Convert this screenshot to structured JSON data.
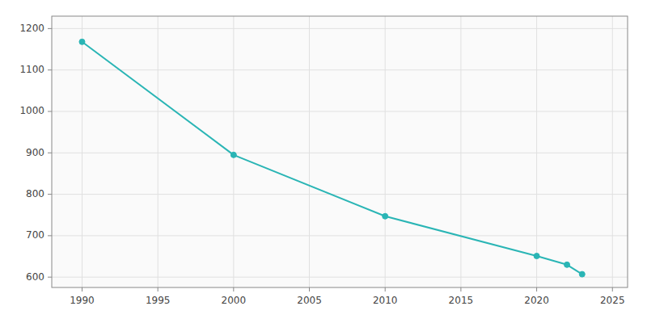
{
  "chart_data": {
    "type": "line",
    "x": [
      1990,
      2000,
      2010,
      2020,
      2022,
      2023
    ],
    "values": [
      1168,
      895,
      747,
      651,
      630,
      607
    ],
    "color": "#2ab5b5",
    "marker": "circle",
    "xlim": [
      1988,
      2026
    ],
    "ylim": [
      575,
      1230
    ],
    "xticks": [
      1990,
      1995,
      2000,
      2005,
      2010,
      2015,
      2020,
      2025
    ],
    "yticks": [
      600,
      700,
      800,
      900,
      1000,
      1100,
      1200
    ],
    "grid": true
  }
}
